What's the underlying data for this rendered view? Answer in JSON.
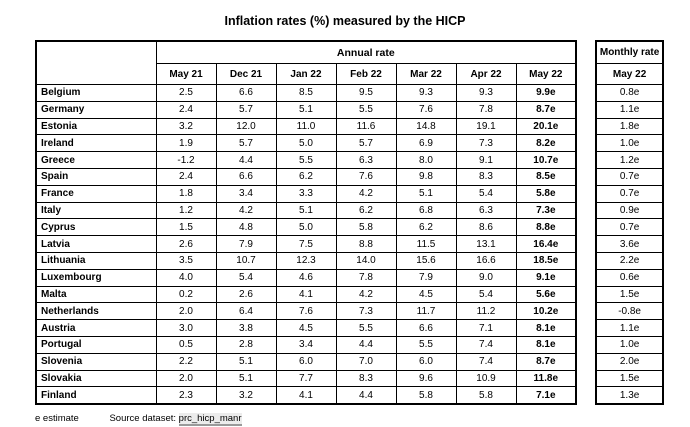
{
  "title": "Inflation rates (%) measured by the HICP",
  "header": {
    "annual_rate_label": "Annual rate",
    "monthly_rate_label": "Monthly rate",
    "monthly_subcolumn": "May 22"
  },
  "chart_data": {
    "type": "table",
    "title": "Inflation rates (%) measured by the HICP",
    "column_groups": [
      "Annual rate",
      "Monthly rate"
    ],
    "annual_columns": [
      "May 21",
      "Dec 21",
      "Jan 22",
      "Feb 22",
      "Mar 22",
      "Apr 22",
      "May 22"
    ],
    "monthly_column": "May 22",
    "rows": [
      {
        "country": "Belgium",
        "annual": [
          "2.5",
          "6.6",
          "8.5",
          "9.5",
          "9.3",
          "9.3",
          "9.9e"
        ],
        "monthly": "0.8e"
      },
      {
        "country": "Germany",
        "annual": [
          "2.4",
          "5.7",
          "5.1",
          "5.5",
          "7.6",
          "7.8",
          "8.7e"
        ],
        "monthly": "1.1e"
      },
      {
        "country": "Estonia",
        "annual": [
          "3.2",
          "12.0",
          "11.0",
          "11.6",
          "14.8",
          "19.1",
          "20.1e"
        ],
        "monthly": "1.8e"
      },
      {
        "country": "Ireland",
        "annual": [
          "1.9",
          "5.7",
          "5.0",
          "5.7",
          "6.9",
          "7.3",
          "8.2e"
        ],
        "monthly": "1.0e"
      },
      {
        "country": "Greece",
        "annual": [
          "-1.2",
          "4.4",
          "5.5",
          "6.3",
          "8.0",
          "9.1",
          "10.7e"
        ],
        "monthly": "1.2e"
      },
      {
        "country": "Spain",
        "annual": [
          "2.4",
          "6.6",
          "6.2",
          "7.6",
          "9.8",
          "8.3",
          "8.5e"
        ],
        "monthly": "0.7e"
      },
      {
        "country": "France",
        "annual": [
          "1.8",
          "3.4",
          "3.3",
          "4.2",
          "5.1",
          "5.4",
          "5.8e"
        ],
        "monthly": "0.7e"
      },
      {
        "country": "Italy",
        "annual": [
          "1.2",
          "4.2",
          "5.1",
          "6.2",
          "6.8",
          "6.3",
          "7.3e"
        ],
        "monthly": "0.9e"
      },
      {
        "country": "Cyprus",
        "annual": [
          "1.5",
          "4.8",
          "5.0",
          "5.8",
          "6.2",
          "8.6",
          "8.8e"
        ],
        "monthly": "0.7e"
      },
      {
        "country": "Latvia",
        "annual": [
          "2.6",
          "7.9",
          "7.5",
          "8.8",
          "11.5",
          "13.1",
          "16.4e"
        ],
        "monthly": "3.6e"
      },
      {
        "country": "Lithuania",
        "annual": [
          "3.5",
          "10.7",
          "12.3",
          "14.0",
          "15.6",
          "16.6",
          "18.5e"
        ],
        "monthly": "2.2e"
      },
      {
        "country": "Luxembourg",
        "annual": [
          "4.0",
          "5.4",
          "4.6",
          "7.8",
          "7.9",
          "9.0",
          "9.1e"
        ],
        "monthly": "0.6e"
      },
      {
        "country": "Malta",
        "annual": [
          "0.2",
          "2.6",
          "4.1",
          "4.2",
          "4.5",
          "5.4",
          "5.6e"
        ],
        "monthly": "1.5e"
      },
      {
        "country": "Netherlands",
        "annual": [
          "2.0",
          "6.4",
          "7.6",
          "7.3",
          "11.7",
          "11.2",
          "10.2e"
        ],
        "monthly": "-0.8e"
      },
      {
        "country": "Austria",
        "annual": [
          "3.0",
          "3.8",
          "4.5",
          "5.5",
          "6.6",
          "7.1",
          "8.1e"
        ],
        "monthly": "1.1e"
      },
      {
        "country": "Portugal",
        "annual": [
          "0.5",
          "2.8",
          "3.4",
          "4.4",
          "5.5",
          "7.4",
          "8.1e"
        ],
        "monthly": "1.0e"
      },
      {
        "country": "Slovenia",
        "annual": [
          "2.2",
          "5.1",
          "6.0",
          "7.0",
          "6.0",
          "7.4",
          "8.7e"
        ],
        "monthly": "2.0e"
      },
      {
        "country": "Slovakia",
        "annual": [
          "2.0",
          "5.1",
          "7.7",
          "8.3",
          "9.6",
          "10.9",
          "11.8e"
        ],
        "monthly": "1.5e"
      },
      {
        "country": "Finland",
        "annual": [
          "2.3",
          "3.2",
          "4.1",
          "4.4",
          "5.8",
          "5.8",
          "7.1e"
        ],
        "monthly": "1.3e"
      }
    ],
    "note": "e estimate",
    "source": "prc_hicp_manr"
  },
  "footer": {
    "estimate_note": "e estimate",
    "source_label": "Source dataset:",
    "source_link_text": "prc_hicp_manr"
  }
}
